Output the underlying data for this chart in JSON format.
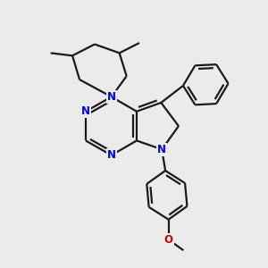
{
  "background_color": "#ebebeb",
  "bond_color": "#1a1a1a",
  "nitrogen_color": "#0000ee",
  "oxygen_color": "#cc0000",
  "line_width": 1.6,
  "figsize": [
    3.0,
    3.0
  ],
  "dpi": 100,
  "xlim": [
    0,
    10
  ],
  "ylim": [
    0,
    10
  ]
}
